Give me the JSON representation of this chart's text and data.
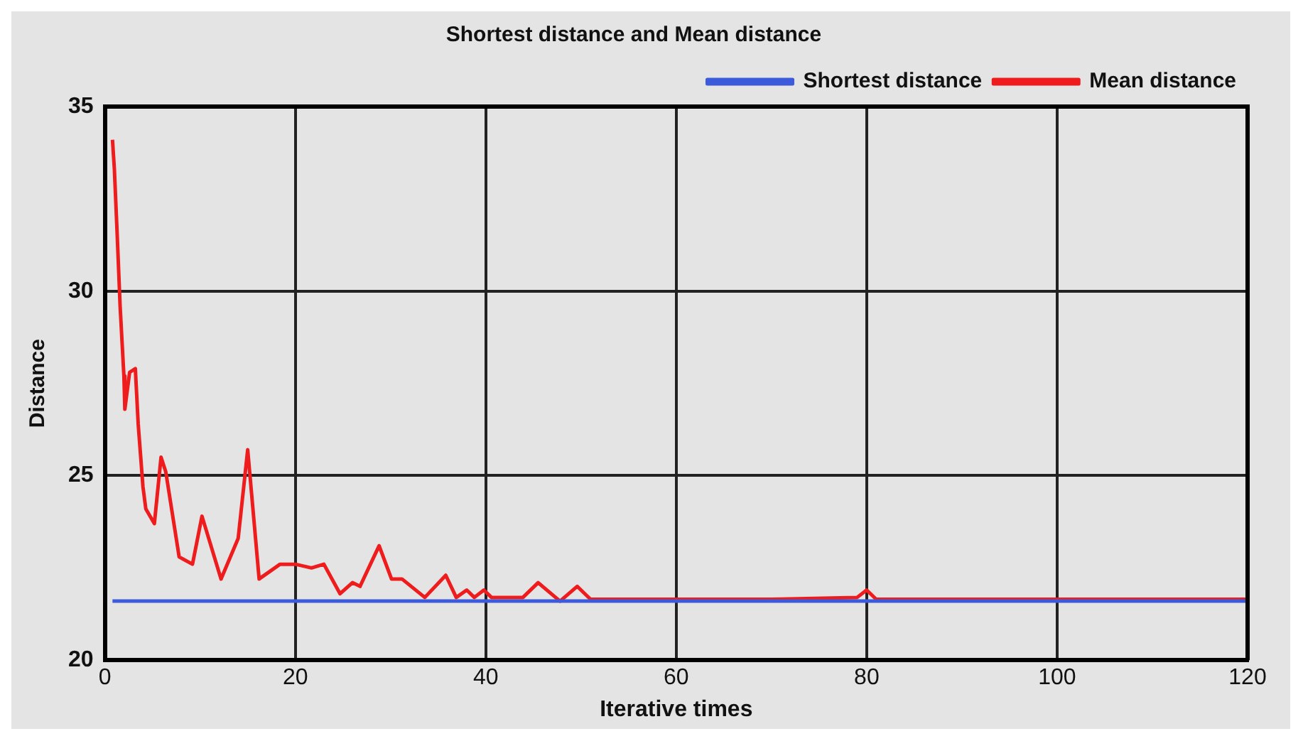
{
  "chart_data": {
    "type": "line",
    "title": "Shortest distance and Mean distance",
    "xlabel": "Iterative times",
    "ylabel": "Distance",
    "xlim": [
      0,
      120
    ],
    "xticks": [
      0,
      20,
      40,
      60,
      80,
      100,
      120
    ],
    "ylim": [
      20,
      35
    ],
    "yticks": [
      20,
      25,
      30,
      35
    ],
    "grid": true,
    "legend": "top right",
    "marker": "none",
    "line_style": "solid",
    "series": [
      {
        "name": "Shortest distance",
        "color": "#3b5bdb",
        "x": [
          0.8,
          120
        ],
        "values": [
          21.6,
          21.6
        ]
      },
      {
        "name": "Mean distance",
        "color": "#ee1c1c",
        "x": [
          0.8,
          1,
          1.3,
          1.6,
          2,
          2.1,
          2.6,
          3.2,
          3.5,
          4,
          4.3,
          5.2,
          5.9,
          6.4,
          7.8,
          9.2,
          10.2,
          12.2,
          14,
          15,
          16.2,
          18.4,
          20,
          21.7,
          23,
          24.7,
          26,
          26.8,
          28.8,
          30.1,
          31.2,
          33.6,
          35.8,
          36.9,
          38,
          38.8,
          39.8,
          40.6,
          43.9,
          45.5,
          47.8,
          49.6,
          51,
          60,
          70,
          79,
          80,
          81,
          90,
          100,
          110,
          120
        ],
        "values": [
          34.1,
          33.3,
          31.5,
          29.6,
          27.7,
          26.8,
          27.8,
          27.9,
          26.4,
          24.7,
          24.1,
          23.7,
          25.5,
          25.1,
          22.8,
          22.6,
          23.9,
          22.2,
          23.3,
          25.7,
          22.2,
          22.6,
          22.6,
          22.5,
          22.6,
          21.8,
          22.1,
          22.0,
          23.1,
          22.2,
          22.2,
          21.7,
          22.3,
          21.7,
          21.9,
          21.7,
          21.9,
          21.7,
          21.7,
          22.1,
          21.6,
          22.0,
          21.65,
          21.65,
          21.65,
          21.7,
          21.9,
          21.65,
          21.65,
          21.65,
          21.65,
          21.65
        ]
      }
    ]
  }
}
